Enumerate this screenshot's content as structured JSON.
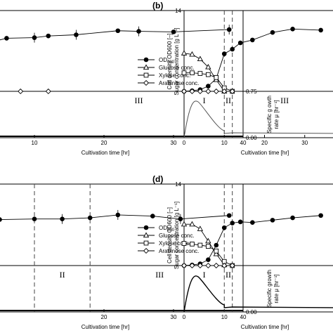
{
  "chart_data": [
    {
      "panel_label": "",
      "type": "line",
      "xlabel": "Cultivation time [hr]",
      "x_ticks": [
        "10",
        "20",
        "30",
        "40"
      ],
      "xlim": [
        0,
        40
      ],
      "y2_label": "Specific g owth rate μ [hr⁻¹]",
      "y2_ticks": [
        "0.75",
        "0.00"
      ],
      "phase_labels": [
        "III"
      ],
      "legend": [
        "OD600",
        "Glucose conc.",
        "Xylose conc.",
        "Arabinose conc."
      ],
      "series": [
        {
          "name": "OD600",
          "x": [
            0,
            3,
            6,
            10,
            12,
            16,
            22,
            25,
            30,
            38
          ],
          "y": [
            7.9,
            8.3,
            9.2,
            9.3,
            9.6,
            9.8,
            10.5,
            10.4,
            10.3,
            10.7
          ]
        },
        {
          "name": "Arabinose conc.",
          "x": [
            0,
            4,
            8,
            12
          ],
          "y": [
            0,
            0,
            0,
            0
          ]
        }
      ]
    },
    {
      "panel_label": "(b)",
      "type": "line",
      "ylabel": "Cell density OD600 [–] Sugar concentration [g L⁻¹]",
      "xlabel": "Cultivation time [hr]",
      "y_top_tick": "14",
      "x_ticks": [
        "0",
        "10",
        "20",
        "30",
        "40"
      ],
      "xlim": [
        0,
        40
      ],
      "ylim": [
        0,
        14
      ],
      "phase_labels": [
        "I",
        "II",
        "III"
      ],
      "phase_boundaries_hr": [
        10,
        12
      ],
      "series": [
        {
          "name": "OD600",
          "x": [
            0,
            2,
            4,
            6,
            8,
            10,
            12,
            14,
            17,
            22,
            27,
            34
          ],
          "y": [
            0,
            0.1,
            0.3,
            0.9,
            2.2,
            6.5,
            7.3,
            8.4,
            8.9,
            10.2,
            10.8,
            10.6
          ]
        },
        {
          "name": "Glucose conc.",
          "x": [
            0,
            2,
            4,
            6,
            8,
            10
          ],
          "y": [
            6.6,
            6.4,
            5.6,
            4.2,
            2.0,
            0
          ]
        },
        {
          "name": "Xylose conc.",
          "x": [
            0,
            2,
            4,
            6,
            8,
            10,
            12
          ],
          "y": [
            3.2,
            3.2,
            3.1,
            2.9,
            2.4,
            0.6,
            0
          ]
        },
        {
          "name": "Arabinose conc.",
          "x": [
            0,
            2,
            4,
            6,
            8,
            10,
            12
          ],
          "y": [
            0,
            0,
            0,
            0,
            0,
            0,
            0
          ]
        }
      ]
    },
    {
      "panel_label": "",
      "type": "line",
      "xlabel": "Cultivation time [hr]",
      "x_ticks": [
        "20",
        "30",
        "40"
      ],
      "xlim": [
        0,
        40
      ],
      "y2_label": "Specific growth rate μ [hr⁻¹]",
      "y2_ticks": [
        "0.00"
      ],
      "phase_labels": [
        "II",
        "III"
      ],
      "phase_boundaries_hr": [
        10,
        18
      ],
      "legend": [
        "OD600",
        "Glucose conc.",
        "Xylose conc.",
        "Arabinose conc."
      ],
      "series": [
        {
          "name": "OD600",
          "x": [
            0,
            5,
            10,
            14,
            18,
            22,
            27,
            31,
            38
          ],
          "y": [
            7.6,
            7.9,
            8.0,
            8.0,
            8.2,
            8.7,
            8.5,
            8.0,
            8.6
          ]
        }
      ]
    },
    {
      "panel_label": "(d)",
      "type": "line",
      "ylabel": "Cell density OD600 [–] Sugar concentration [g L⁻¹]",
      "xlabel": "Cultivation time [hr]",
      "y_top_tick": "14",
      "x_ticks": [
        "0",
        "10"
      ],
      "xlim": [
        0,
        40
      ],
      "ylim": [
        0,
        14
      ],
      "phase_labels": [
        "I",
        "II"
      ],
      "phase_boundaries_hr": [
        10,
        12
      ],
      "series": [
        {
          "name": "OD600",
          "x": [
            0,
            2,
            4,
            6,
            8,
            10,
            12,
            14,
            17,
            22,
            27,
            34
          ],
          "y": [
            0,
            0.1,
            0.3,
            1.0,
            3.5,
            6.5,
            7.3,
            7.5,
            7.4,
            7.8,
            8.2,
            8.6
          ]
        },
        {
          "name": "Glucose conc.",
          "x": [
            0,
            2,
            4,
            6,
            8,
            10
          ],
          "y": [
            7.1,
            7.1,
            6.3,
            4.2,
            2.0,
            0.1
          ]
        },
        {
          "name": "Xylose conc.",
          "x": [
            0,
            2,
            4,
            6,
            8,
            10,
            12
          ],
          "y": [
            3.8,
            3.7,
            3.5,
            3.3,
            2.5,
            0.7,
            0
          ]
        },
        {
          "name": "Arabinose conc.",
          "x": [
            0,
            2,
            4,
            6,
            8,
            10,
            12
          ],
          "y": [
            0,
            0,
            0,
            0,
            0,
            0,
            0
          ]
        }
      ]
    }
  ]
}
